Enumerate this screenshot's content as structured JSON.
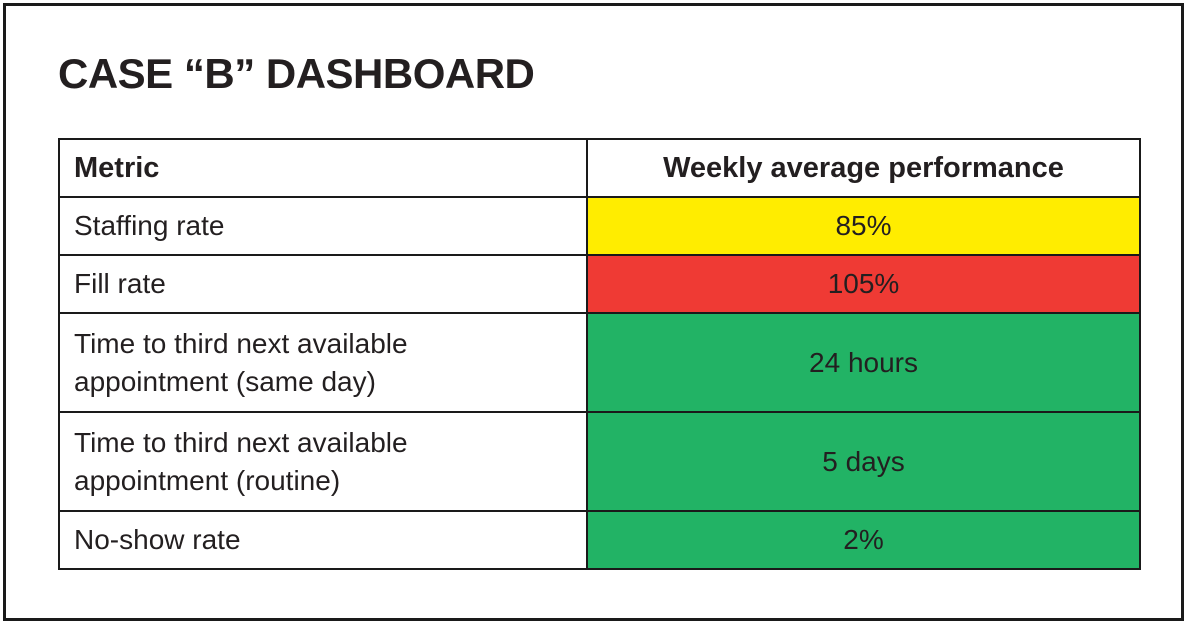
{
  "title": "CASE “B” DASHBOARD",
  "table": {
    "columns": [
      {
        "label": "Metric"
      },
      {
        "label": "Weekly average performance"
      }
    ],
    "rows": [
      {
        "metric": "Staffing rate",
        "value": "85%",
        "status": "warning"
      },
      {
        "metric": "Fill rate",
        "value": "105%",
        "status": "critical"
      },
      {
        "metric": "Time to third next available appointment (same day)",
        "value": "24 hours",
        "status": "good"
      },
      {
        "metric": "Time to third next available appointment (routine)",
        "value": "5 days",
        "status": "good"
      },
      {
        "metric": "No-show rate",
        "value": "2%",
        "status": "good"
      }
    ]
  },
  "colors": {
    "warning": "#ffed00",
    "critical": "#ef3a34",
    "good": "#22b365",
    "border": "#1a1a1a",
    "text": "#231f20"
  },
  "chart_data": {
    "type": "table",
    "title": "CASE “B” DASHBOARD",
    "columns": [
      "Metric",
      "Weekly average performance"
    ],
    "rows": [
      [
        "Staffing rate",
        "85%"
      ],
      [
        "Fill rate",
        "105%"
      ],
      [
        "Time to third next available appointment (same day)",
        "24 hours"
      ],
      [
        "Time to third next available appointment (routine)",
        "5 days"
      ],
      [
        "No-show rate",
        "2%"
      ]
    ],
    "value_cell_status": [
      "warning",
      "critical",
      "good",
      "good",
      "good"
    ],
    "status_colors": {
      "warning": "#ffed00",
      "critical": "#ef3a34",
      "good": "#22b365"
    },
    "notes": "Status color fills the Weekly average performance cell of each row; metric cells are white."
  }
}
